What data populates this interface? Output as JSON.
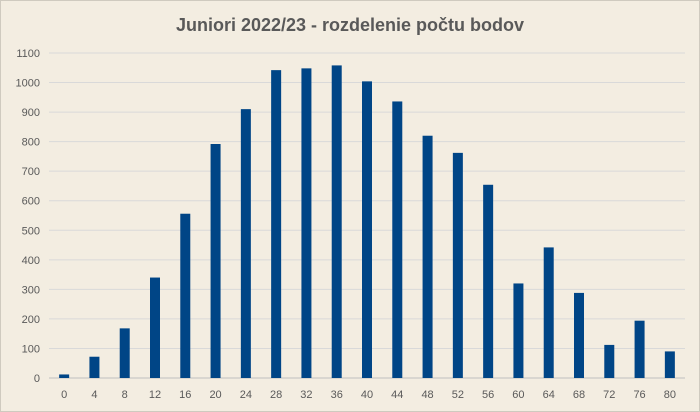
{
  "chart_data": {
    "type": "bar",
    "title": "Juniori 2022/23 - rozdelenie počtu bodov",
    "xlabel": "",
    "ylabel": "",
    "categories": [
      "0",
      "4",
      "8",
      "12",
      "16",
      "20",
      "24",
      "28",
      "32",
      "36",
      "40",
      "44",
      "48",
      "52",
      "56",
      "60",
      "64",
      "68",
      "72",
      "76",
      "80"
    ],
    "values": [
      12,
      72,
      168,
      340,
      556,
      792,
      910,
      1042,
      1048,
      1058,
      1004,
      936,
      820,
      762,
      654,
      320,
      442,
      288,
      112,
      194,
      90
    ],
    "ylim": [
      0,
      1100
    ],
    "yticks": [
      "0",
      "100",
      "200",
      "300",
      "400",
      "500",
      "600",
      "700",
      "800",
      "900",
      "1000",
      "1100"
    ],
    "grid": true,
    "legend": "none",
    "colors": {
      "bar": "#004586",
      "background": "#f3ede1"
    }
  }
}
